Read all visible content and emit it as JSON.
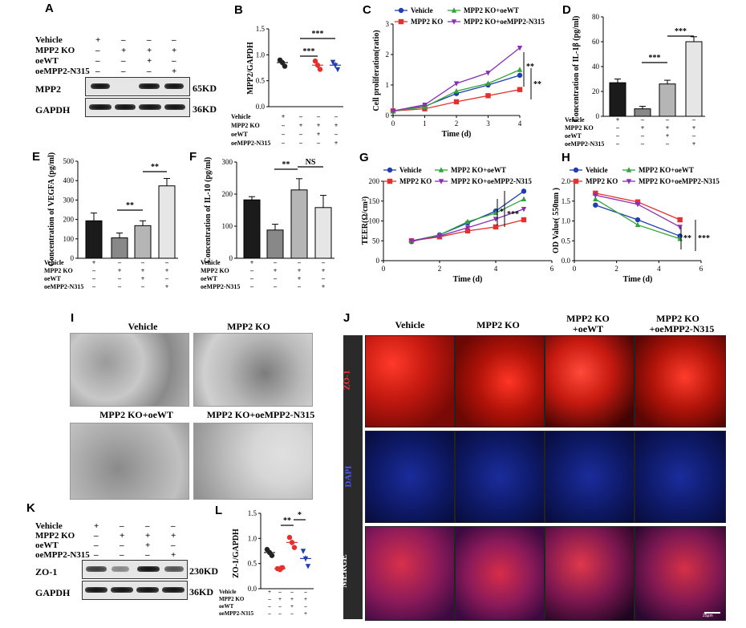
{
  "panels": {
    "A": "A",
    "B": "B",
    "C": "C",
    "D": "D",
    "E": "E",
    "F": "F",
    "G": "G",
    "H": "H",
    "I": "I",
    "J": "J",
    "K": "K",
    "L": "L"
  },
  "conditions": {
    "vehicle": "Vehicle",
    "ko": "MPP2 KO",
    "oewt": "oeWT",
    "oen315": "oeMPP2-N315"
  },
  "sign_rows": [
    [
      "+",
      "–",
      "–",
      "–"
    ],
    [
      "–",
      "+",
      "+",
      "+"
    ],
    [
      "–",
      "–",
      "+",
      "–"
    ],
    [
      "–",
      "–",
      "–",
      "+"
    ]
  ],
  "panelA": {
    "mpp2": "MPP2",
    "mpp2_kd": "65KD",
    "gapdh": "GAPDH",
    "gapdh_kd": "36KD"
  },
  "panelK": {
    "zo1": "ZO-1",
    "zo1_kd": "230KD",
    "gapdh": "GAPDH",
    "gapdh_kd": "36KD"
  },
  "legend": {
    "vehicle": "Vehicle",
    "ko": "MPP2 KO",
    "oewt": "MPP2 KO+oeWT",
    "oen315": "MPP2 KO+oeMPP2-N315"
  },
  "panelI": {
    "t1": "Vehicle",
    "t2": "MPP2 KO",
    "t3": "MPP2 KO+oeWT",
    "t4": "MPP2 KO+oeMPP2-N315"
  },
  "panelJ": {
    "c1": "Vehicle",
    "c2": "MPP2 KO",
    "c3a": "MPP2 KO",
    "c3b": "+oeWT",
    "c4a": "MPP2 KO",
    "c4b": "+oeMPP2-N315",
    "r1": "ZO-1",
    "r2": "DAPI",
    "r3": "MERGE",
    "scale": "25μm"
  },
  "colors": {
    "vehicle": "#1f3fae",
    "ko": "#e53030",
    "oewt": "#33a33a",
    "oen315": "#8a2fb5",
    "bar1": "#1b1b1b",
    "bar2": "#888888",
    "bar3": "#b5b5b5",
    "bar4": "#e6e6e6"
  },
  "chart_data": [
    {
      "id": "B",
      "type": "scatter",
      "ylabel": "MPP2/GAPDH",
      "ylim": [
        0,
        1.5
      ],
      "yticks": [
        "0.0",
        "0.5",
        "1.0",
        "1.5"
      ],
      "groups": [
        {
          "values": [
            0.9,
            0.85,
            0.78
          ],
          "mean": 0.85
        },
        {
          "values": [],
          "mean": null
        },
        {
          "values": [
            0.88,
            0.8,
            0.72
          ],
          "mean": 0.8
        },
        {
          "values": [
            0.86,
            0.8,
            0.72
          ],
          "mean": 0.8
        }
      ],
      "annotations": [
        "***",
        "***"
      ]
    },
    {
      "id": "C",
      "type": "line",
      "xlabel": "Time (d)",
      "ylabel": "Cell proliferation(ratio)",
      "xlim": [
        0,
        4
      ],
      "ylim": [
        0,
        3
      ],
      "xticks": [
        "0",
        "1",
        "2",
        "3",
        "4"
      ],
      "yticks": [
        "0",
        "1",
        "2",
        "3"
      ],
      "x": [
        0,
        1,
        2,
        3,
        4
      ],
      "series": [
        {
          "name": "Vehicle",
          "values": [
            0.15,
            0.3,
            0.72,
            1.0,
            1.32
          ]
        },
        {
          "name": "MPP2 KO",
          "values": [
            0.15,
            0.22,
            0.45,
            0.65,
            0.85
          ]
        },
        {
          "name": "MPP2 KO+oeWT",
          "values": [
            0.15,
            0.28,
            0.8,
            1.05,
            1.5
          ]
        },
        {
          "name": "MPP2 KO+oeMPP2-N315",
          "values": [
            0.15,
            0.35,
            1.05,
            1.4,
            2.22
          ]
        }
      ],
      "annotations": [
        "**",
        "**"
      ]
    },
    {
      "id": "D",
      "type": "bar",
      "ylabel": "Concentration of IL-1β (pg/ml)",
      "ylim": [
        0,
        80
      ],
      "yticks": [
        "0",
        "20",
        "40",
        "60",
        "80"
      ],
      "values": [
        27,
        6,
        26,
        60
      ],
      "errors": [
        3,
        2,
        3,
        4
      ],
      "annotations": [
        "***",
        "***"
      ]
    },
    {
      "id": "E",
      "type": "bar",
      "ylabel": "Concentration of VEGFA (pg/ml)",
      "ylim": [
        0,
        500
      ],
      "yticks": [
        "0",
        "100",
        "200",
        "300",
        "400",
        "500"
      ],
      "values": [
        193,
        105,
        168,
        373
      ],
      "errors": [
        40,
        25,
        25,
        38
      ],
      "annotations": [
        "**",
        "**"
      ]
    },
    {
      "id": "F",
      "type": "bar",
      "ylabel": "Concentration of IL-10 (pg/ml)",
      "ylim": [
        0,
        300
      ],
      "yticks": [
        "0",
        "100",
        "200",
        "300"
      ],
      "values": [
        182,
        88,
        213,
        158
      ],
      "errors": [
        10,
        18,
        35,
        38
      ],
      "annotations": [
        "**",
        "NS"
      ]
    },
    {
      "id": "G",
      "type": "line",
      "xlabel": "Time (d)",
      "ylabel": "TEER(Ω/cm²)",
      "xlim": [
        0,
        6
      ],
      "ylim": [
        0,
        200
      ],
      "xticks": [
        "0",
        "2",
        "4",
        "6"
      ],
      "yticks": [
        "0",
        "50",
        "100",
        "150",
        "200"
      ],
      "x": [
        1,
        2,
        3,
        4,
        5
      ],
      "series": [
        {
          "name": "Vehicle",
          "values": [
            48,
            65,
            95,
            125,
            175
          ]
        },
        {
          "name": "MPP2 KO",
          "values": [
            50,
            60,
            75,
            85,
            103
          ]
        },
        {
          "name": "MPP2 KO+oeWT",
          "values": [
            50,
            65,
            98,
            120,
            155
          ]
        },
        {
          "name": "MPP2 KO+oeMPP2-N315",
          "values": [
            50,
            62,
            83,
            105,
            130
          ]
        }
      ],
      "annotations": [
        "*",
        "***"
      ]
    },
    {
      "id": "H",
      "type": "line",
      "xlabel": "Time (d)",
      "ylabel": "OD Value( 550nm )",
      "xlim": [
        0,
        6
      ],
      "ylim": [
        0,
        2.0
      ],
      "xticks": [
        "0",
        "2",
        "4",
        "6"
      ],
      "yticks": [
        "0.0",
        "0.5",
        "1.0",
        "1.5",
        "2.0"
      ],
      "x": [
        1,
        3,
        5
      ],
      "series": [
        {
          "name": "Vehicle",
          "values": [
            1.4,
            1.03,
            0.62
          ]
        },
        {
          "name": "MPP2 KO",
          "values": [
            1.7,
            1.48,
            1.03
          ]
        },
        {
          "name": "MPP2 KO+oeWT",
          "values": [
            1.55,
            0.9,
            0.55
          ]
        },
        {
          "name": "MPP2 KO+oeMPP2-N315",
          "values": [
            1.65,
            1.42,
            0.85
          ]
        }
      ],
      "annotations": [
        "**",
        "***"
      ]
    },
    {
      "id": "L",
      "type": "scatter",
      "ylabel": "ZO-1/GAPDH",
      "ylim": [
        0,
        1.5
      ],
      "yticks": [
        "0.0",
        "0.5",
        "1.0",
        "1.5"
      ],
      "groups": [
        {
          "values": [
            0.78,
            0.72,
            0.66
          ],
          "mean": 0.72
        },
        {
          "values": [
            0.4,
            0.38,
            0.42
          ],
          "mean": 0.4
        },
        {
          "values": [
            1.02,
            0.92,
            0.82
          ],
          "mean": 0.92
        },
        {
          "values": [
            0.75,
            0.6,
            0.45
          ],
          "mean": 0.6
        }
      ],
      "annotations": [
        "**",
        "*"
      ]
    }
  ]
}
